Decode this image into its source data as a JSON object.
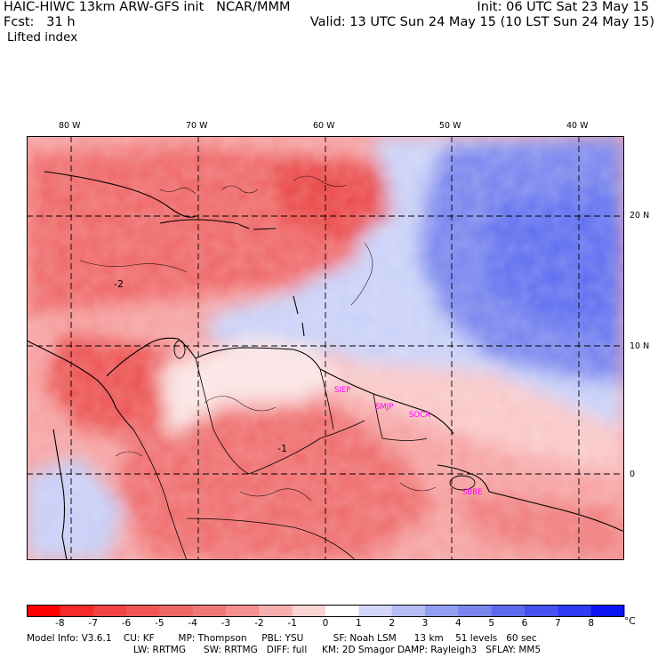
{
  "header": {
    "left_line1": "HAIC-HIWC 13km ARW-GFS init   NCAR/MMM",
    "left_line2": "Fcst:   31 h",
    "field_name": "Lifted index",
    "right_line1": "Init: 06 UTC Sat 23 May 15",
    "right_line2": "Valid: 13 UTC Sun 24 May 15 (10 LST Sun 24 May 15)"
  },
  "map": {
    "longitude_labels": [
      "80 W",
      "70 W",
      "60 W",
      "50 W",
      "40 W"
    ],
    "latitude_labels": [
      "20 N",
      "10 N",
      "0"
    ],
    "contour_labels": [
      "-2",
      "-1"
    ],
    "station_labels": [
      "SIEP",
      "SMJP",
      "SOCA",
      "SBBE"
    ],
    "colors": {
      "negative_strong": "#ee3535",
      "negative_weak": "#f9b8b8",
      "positive_strong": "#5b6cf0",
      "positive_weak": "#c4cdf8",
      "station_label": "#ff00ff"
    }
  },
  "colorbar": {
    "labels": [
      "-8",
      "-7",
      "-6",
      "-5",
      "-4",
      "-3",
      "-2",
      "-1",
      "0",
      "1",
      "2",
      "3",
      "4",
      "5",
      "6",
      "7",
      "8"
    ],
    "unit": "°C",
    "colors": [
      "#ff0000",
      "#f52a2a",
      "#f24343",
      "#f05656",
      "#ef6767",
      "#f07878",
      "#f38f8f",
      "#f7aeae",
      "#fbd3d3",
      "#ffffff",
      "#d3d6fa",
      "#b5bcf5",
      "#939df1",
      "#7a85ee",
      "#5e6aee",
      "#4652f0",
      "#2e3bf3",
      "#0b14f0"
    ]
  },
  "model_info": {
    "line1": "Model Info: V3.6.1    CU: KF        MP: Thompson     PBL: YSU          SF: Noah LSM      13 km    51 levels   60 sec",
    "line2": "LW: RRTMG      SW: RRTMG   DIFF: full     KM: 2D Smagor DAMP: Rayleigh3   SFLAY: MM5"
  }
}
